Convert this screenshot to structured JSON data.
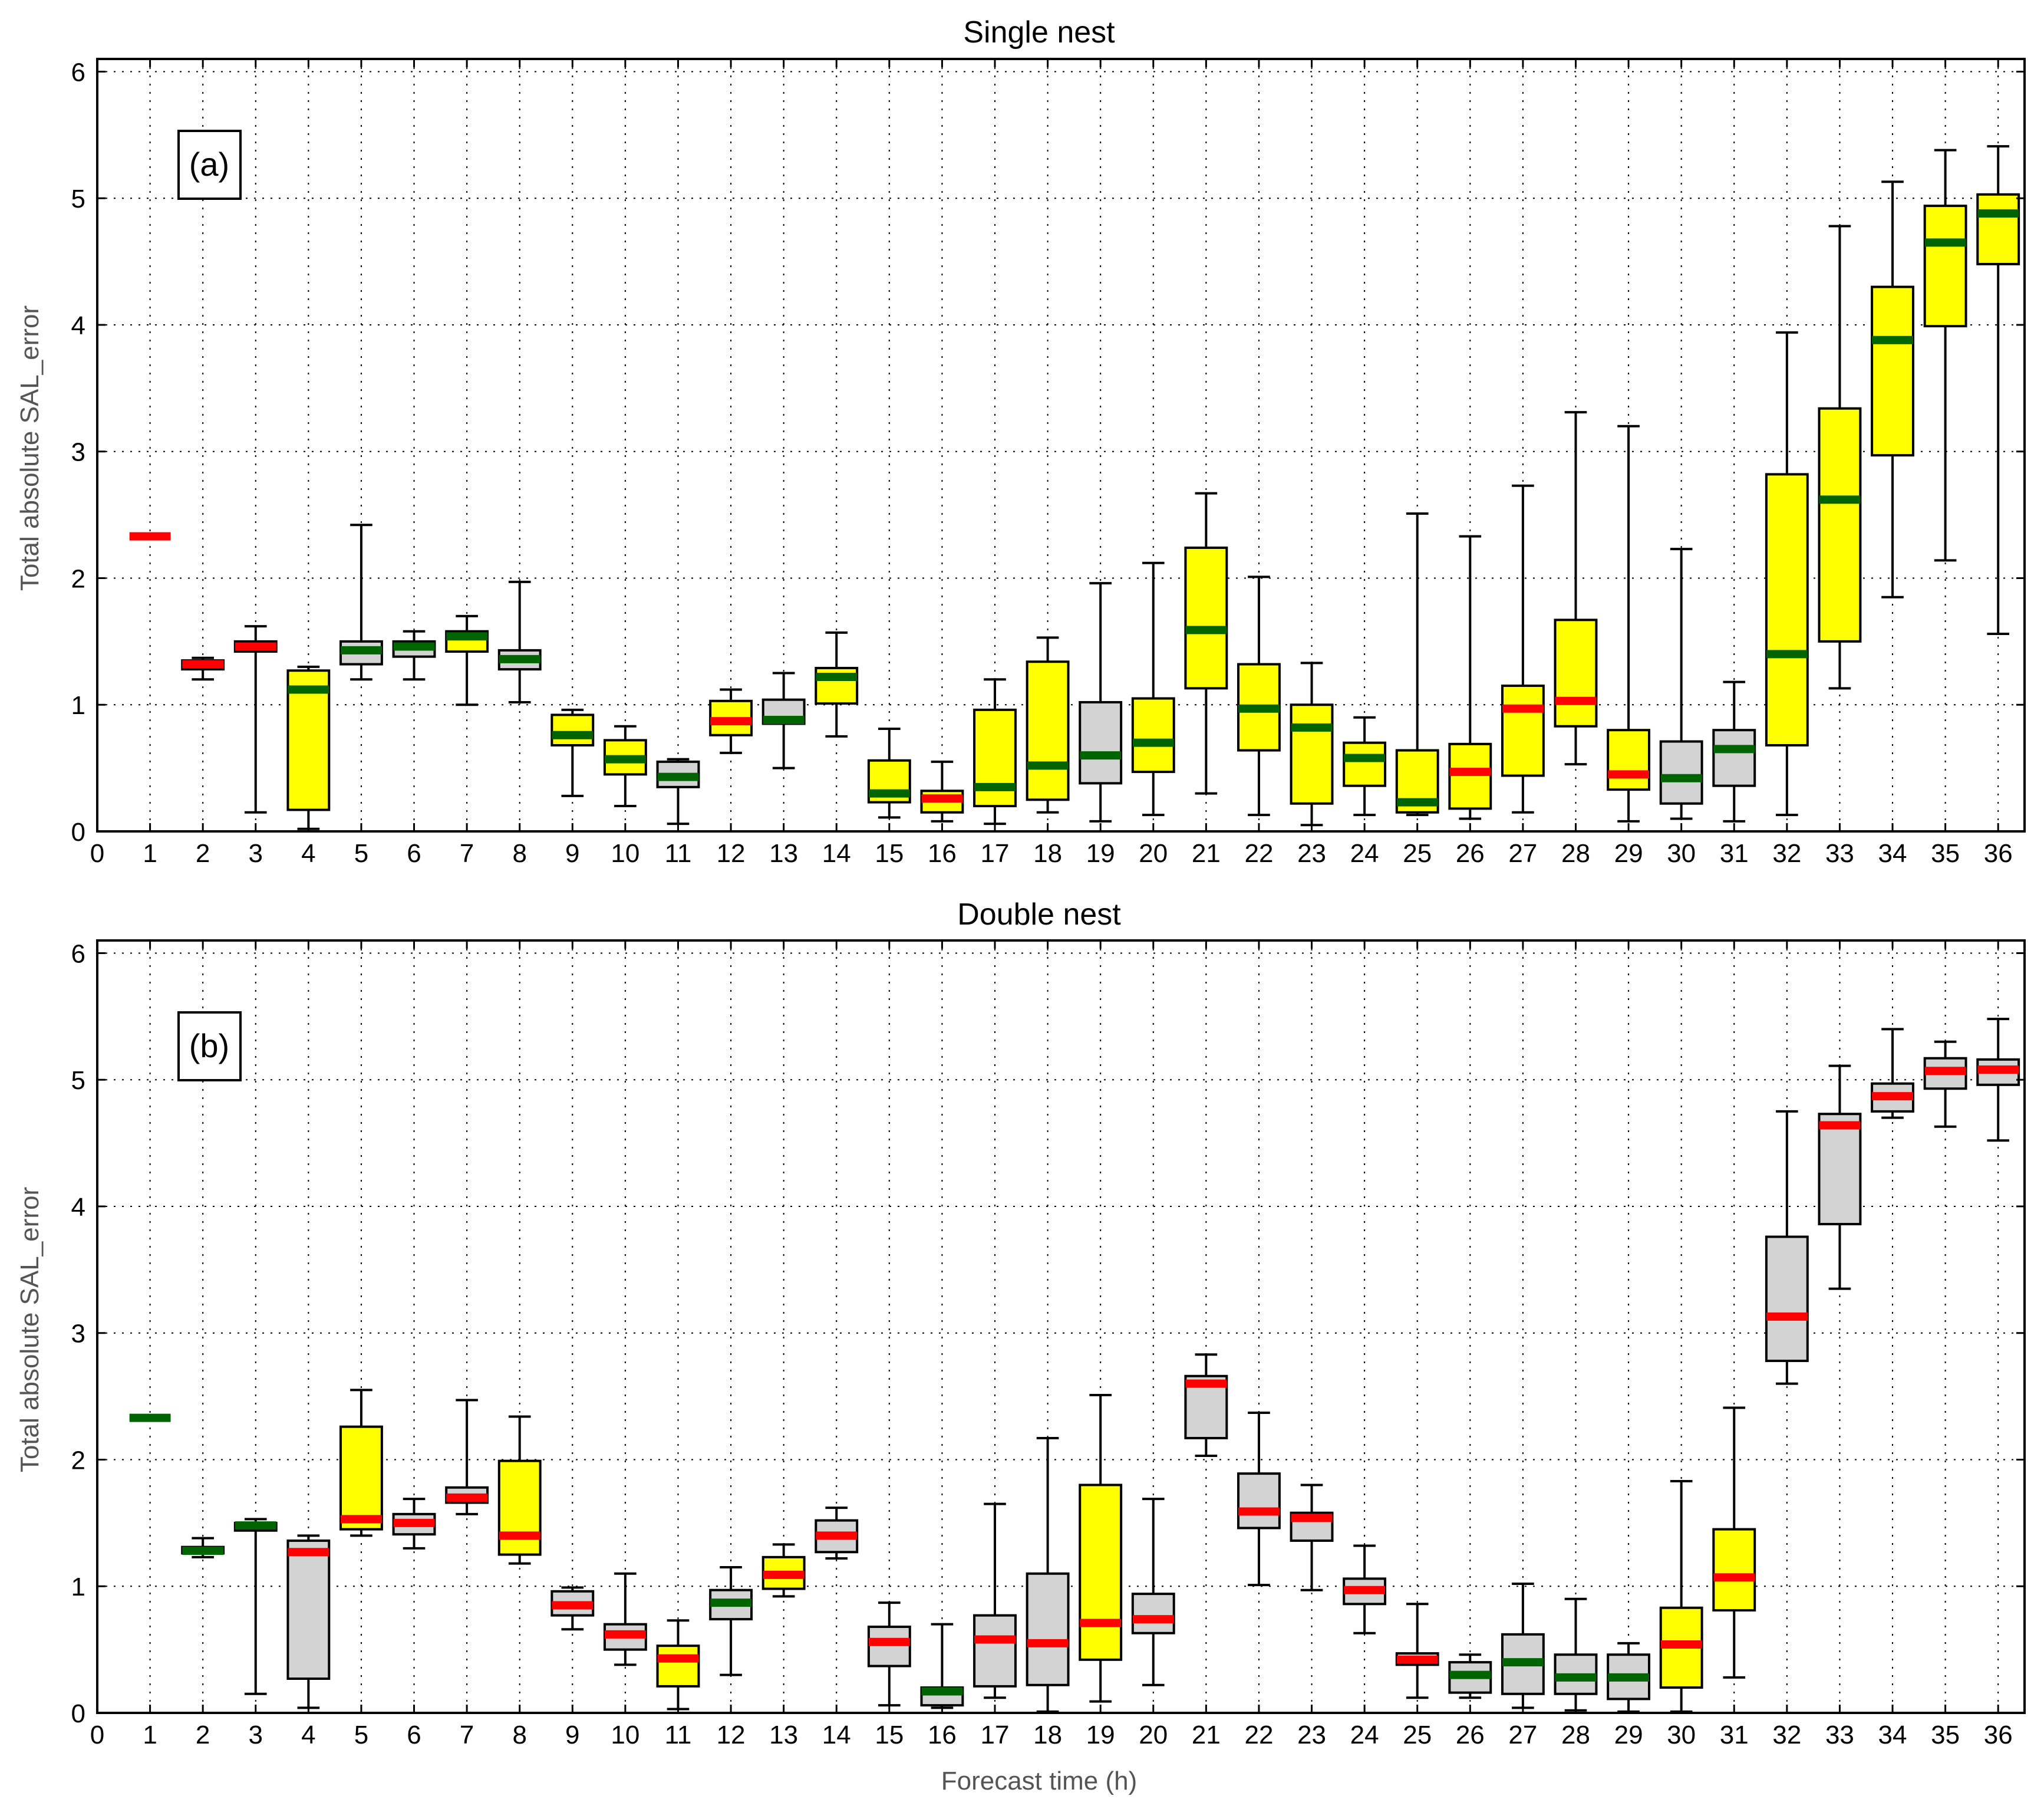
{
  "chart_data": [
    {
      "type": "boxplot",
      "title": "Single nest",
      "panel_label": "(a)",
      "ylabel": "Total absolute SAL_error",
      "xlabel": "",
      "xlim": [
        0,
        36.5
      ],
      "ylim": [
        0,
        6.1
      ],
      "xticks": [
        "0",
        "1",
        "2",
        "3",
        "4",
        "5",
        "6",
        "7",
        "8",
        "9",
        "10",
        "11",
        "12",
        "13",
        "14",
        "15",
        "16",
        "17",
        "18",
        "19",
        "20",
        "21",
        "22",
        "23",
        "24",
        "25",
        "26",
        "27",
        "28",
        "29",
        "30",
        "31",
        "32",
        "33",
        "34",
        "35",
        "36"
      ],
      "yticks": [
        "0",
        "1",
        "2",
        "3",
        "4",
        "5",
        "6"
      ],
      "grid": true,
      "colors": {
        "yellow": "#ffff00",
        "gray": "#d3d3d3",
        "red": "#ff0000",
        "green": "#006400"
      },
      "boxes": [
        {
          "x": 1,
          "min": 2.33,
          "q1": 2.33,
          "median": 2.33,
          "q3": 2.33,
          "max": 2.33,
          "box": "none",
          "median_color": "red"
        },
        {
          "x": 2,
          "min": 1.2,
          "q1": 1.28,
          "median": 1.32,
          "q3": 1.35,
          "max": 1.37,
          "box": "gray",
          "median_color": "red"
        },
        {
          "x": 3,
          "min": 0.15,
          "q1": 1.42,
          "median": 1.46,
          "q3": 1.5,
          "max": 1.62,
          "box": "gray",
          "median_color": "red"
        },
        {
          "x": 4,
          "min": 0.02,
          "q1": 0.17,
          "median": 1.12,
          "q3": 1.27,
          "max": 1.3,
          "box": "yellow",
          "median_color": "green"
        },
        {
          "x": 5,
          "min": 1.2,
          "q1": 1.32,
          "median": 1.43,
          "q3": 1.5,
          "max": 2.42,
          "box": "gray",
          "median_color": "green"
        },
        {
          "x": 6,
          "min": 1.2,
          "q1": 1.38,
          "median": 1.46,
          "q3": 1.5,
          "max": 1.58,
          "box": "gray",
          "median_color": "green"
        },
        {
          "x": 7,
          "min": 1.0,
          "q1": 1.42,
          "median": 1.54,
          "q3": 1.58,
          "max": 1.7,
          "box": "yellow",
          "median_color": "green"
        },
        {
          "x": 8,
          "min": 1.02,
          "q1": 1.28,
          "median": 1.36,
          "q3": 1.43,
          "max": 1.97,
          "box": "gray",
          "median_color": "green"
        },
        {
          "x": 9,
          "min": 0.28,
          "q1": 0.68,
          "median": 0.76,
          "q3": 0.92,
          "max": 0.96,
          "box": "yellow",
          "median_color": "green"
        },
        {
          "x": 10,
          "min": 0.2,
          "q1": 0.45,
          "median": 0.57,
          "q3": 0.72,
          "max": 0.83,
          "box": "yellow",
          "median_color": "green"
        },
        {
          "x": 11,
          "min": 0.06,
          "q1": 0.35,
          "median": 0.43,
          "q3": 0.55,
          "max": 0.57,
          "box": "gray",
          "median_color": "green"
        },
        {
          "x": 12,
          "min": 0.62,
          "q1": 0.76,
          "median": 0.87,
          "q3": 1.03,
          "max": 1.12,
          "box": "yellow",
          "median_color": "red"
        },
        {
          "x": 13,
          "min": 0.5,
          "q1": 0.85,
          "median": 0.88,
          "q3": 1.04,
          "max": 1.25,
          "box": "gray",
          "median_color": "green"
        },
        {
          "x": 14,
          "min": 0.75,
          "q1": 1.01,
          "median": 1.22,
          "q3": 1.29,
          "max": 1.57,
          "box": "yellow",
          "median_color": "green"
        },
        {
          "x": 15,
          "min": 0.11,
          "q1": 0.23,
          "median": 0.3,
          "q3": 0.56,
          "max": 0.81,
          "box": "yellow",
          "median_color": "green"
        },
        {
          "x": 16,
          "min": 0.08,
          "q1": 0.15,
          "median": 0.26,
          "q3": 0.32,
          "max": 0.55,
          "box": "yellow",
          "median_color": "red"
        },
        {
          "x": 17,
          "min": 0.06,
          "q1": 0.2,
          "median": 0.35,
          "q3": 0.96,
          "max": 1.2,
          "box": "yellow",
          "median_color": "green"
        },
        {
          "x": 18,
          "min": 0.15,
          "q1": 0.25,
          "median": 0.52,
          "q3": 1.34,
          "max": 1.53,
          "box": "yellow",
          "median_color": "green"
        },
        {
          "x": 19,
          "min": 0.08,
          "q1": 0.38,
          "median": 0.6,
          "q3": 1.02,
          "max": 1.96,
          "box": "gray",
          "median_color": "green"
        },
        {
          "x": 20,
          "min": 0.13,
          "q1": 0.47,
          "median": 0.7,
          "q3": 1.05,
          "max": 2.12,
          "box": "yellow",
          "median_color": "green"
        },
        {
          "x": 21,
          "min": 0.3,
          "q1": 1.13,
          "median": 1.59,
          "q3": 2.24,
          "max": 2.67,
          "box": "yellow",
          "median_color": "green"
        },
        {
          "x": 22,
          "min": 0.13,
          "q1": 0.64,
          "median": 0.97,
          "q3": 1.32,
          "max": 2.01,
          "box": "yellow",
          "median_color": "green"
        },
        {
          "x": 23,
          "min": 0.05,
          "q1": 0.22,
          "median": 0.82,
          "q3": 1.0,
          "max": 1.33,
          "box": "yellow",
          "median_color": "green"
        },
        {
          "x": 24,
          "min": 0.13,
          "q1": 0.36,
          "median": 0.58,
          "q3": 0.7,
          "max": 0.9,
          "box": "yellow",
          "median_color": "green"
        },
        {
          "x": 25,
          "min": 0.13,
          "q1": 0.15,
          "median": 0.23,
          "q3": 0.64,
          "max": 2.51,
          "box": "yellow",
          "median_color": "green"
        },
        {
          "x": 26,
          "min": 0.1,
          "q1": 0.18,
          "median": 0.47,
          "q3": 0.69,
          "max": 2.33,
          "box": "yellow",
          "median_color": "red"
        },
        {
          "x": 27,
          "min": 0.15,
          "q1": 0.44,
          "median": 0.97,
          "q3": 1.15,
          "max": 2.73,
          "box": "yellow",
          "median_color": "red"
        },
        {
          "x": 28,
          "min": 0.53,
          "q1": 0.83,
          "median": 1.03,
          "q3": 1.67,
          "max": 3.31,
          "box": "yellow",
          "median_color": "red"
        },
        {
          "x": 29,
          "min": 0.08,
          "q1": 0.33,
          "median": 0.45,
          "q3": 0.8,
          "max": 3.2,
          "box": "yellow",
          "median_color": "red"
        },
        {
          "x": 30,
          "min": 0.1,
          "q1": 0.22,
          "median": 0.42,
          "q3": 0.71,
          "max": 2.23,
          "box": "gray",
          "median_color": "green"
        },
        {
          "x": 31,
          "min": 0.08,
          "q1": 0.36,
          "median": 0.65,
          "q3": 0.8,
          "max": 1.18,
          "box": "gray",
          "median_color": "green"
        },
        {
          "x": 32,
          "min": 0.13,
          "q1": 0.68,
          "median": 1.4,
          "q3": 2.82,
          "max": 3.94,
          "box": "yellow",
          "median_color": "green"
        },
        {
          "x": 33,
          "min": 1.13,
          "q1": 1.5,
          "median": 2.62,
          "q3": 3.34,
          "max": 4.78,
          "box": "yellow",
          "median_color": "green"
        },
        {
          "x": 34,
          "min": 1.85,
          "q1": 2.97,
          "median": 3.88,
          "q3": 4.3,
          "max": 5.13,
          "box": "yellow",
          "median_color": "green"
        },
        {
          "x": 35,
          "min": 2.14,
          "q1": 3.99,
          "median": 4.65,
          "q3": 4.94,
          "max": 5.38,
          "box": "yellow",
          "median_color": "green"
        },
        {
          "x": 36,
          "min": 1.56,
          "q1": 4.48,
          "median": 4.88,
          "q3": 5.03,
          "max": 5.41,
          "box": "yellow",
          "median_color": "green"
        }
      ]
    },
    {
      "type": "boxplot",
      "title": "Double nest",
      "panel_label": "(b)",
      "ylabel": "Total absolute SAL_error",
      "xlabel": "Forecast time (h)",
      "xlim": [
        0,
        36.5
      ],
      "ylim": [
        0,
        6.1
      ],
      "xticks": [
        "0",
        "1",
        "2",
        "3",
        "4",
        "5",
        "6",
        "7",
        "8",
        "9",
        "10",
        "11",
        "12",
        "13",
        "14",
        "15",
        "16",
        "17",
        "18",
        "19",
        "20",
        "21",
        "22",
        "23",
        "24",
        "25",
        "26",
        "27",
        "28",
        "29",
        "30",
        "31",
        "32",
        "33",
        "34",
        "35",
        "36"
      ],
      "yticks": [
        "0",
        "1",
        "2",
        "3",
        "4",
        "5",
        "6"
      ],
      "grid": true,
      "colors": {
        "yellow": "#ffff00",
        "gray": "#d3d3d3",
        "red": "#ff0000",
        "green": "#006400"
      },
      "boxes": [
        {
          "x": 1,
          "min": 2.33,
          "q1": 2.33,
          "median": 2.33,
          "q3": 2.33,
          "max": 2.33,
          "box": "none",
          "median_color": "green"
        },
        {
          "x": 2,
          "min": 1.23,
          "q1": 1.26,
          "median": 1.28,
          "q3": 1.31,
          "max": 1.38,
          "box": "gray",
          "median_color": "green"
        },
        {
          "x": 3,
          "min": 0.15,
          "q1": 1.44,
          "median": 1.48,
          "q3": 1.5,
          "max": 1.53,
          "box": "gray",
          "median_color": "green"
        },
        {
          "x": 4,
          "min": 0.04,
          "q1": 0.27,
          "median": 1.27,
          "q3": 1.36,
          "max": 1.4,
          "box": "gray",
          "median_color": "red"
        },
        {
          "x": 5,
          "min": 1.4,
          "q1": 1.45,
          "median": 1.53,
          "q3": 2.26,
          "max": 2.55,
          "box": "yellow",
          "median_color": "red"
        },
        {
          "x": 6,
          "min": 1.3,
          "q1": 1.41,
          "median": 1.5,
          "q3": 1.57,
          "max": 1.69,
          "box": "gray",
          "median_color": "red"
        },
        {
          "x": 7,
          "min": 1.57,
          "q1": 1.66,
          "median": 1.7,
          "q3": 1.78,
          "max": 2.47,
          "box": "gray",
          "median_color": "red"
        },
        {
          "x": 8,
          "min": 1.18,
          "q1": 1.25,
          "median": 1.4,
          "q3": 1.99,
          "max": 2.34,
          "box": "yellow",
          "median_color": "red"
        },
        {
          "x": 9,
          "min": 0.66,
          "q1": 0.77,
          "median": 0.85,
          "q3": 0.96,
          "max": 0.99,
          "box": "gray",
          "median_color": "red"
        },
        {
          "x": 10,
          "min": 0.38,
          "q1": 0.5,
          "median": 0.62,
          "q3": 0.7,
          "max": 1.1,
          "box": "gray",
          "median_color": "red"
        },
        {
          "x": 11,
          "min": 0.03,
          "q1": 0.21,
          "median": 0.43,
          "q3": 0.53,
          "max": 0.73,
          "box": "yellow",
          "median_color": "red"
        },
        {
          "x": 12,
          "min": 0.3,
          "q1": 0.74,
          "median": 0.87,
          "q3": 0.97,
          "max": 1.15,
          "box": "gray",
          "median_color": "green"
        },
        {
          "x": 13,
          "min": 0.92,
          "q1": 0.98,
          "median": 1.09,
          "q3": 1.23,
          "max": 1.33,
          "box": "yellow",
          "median_color": "red"
        },
        {
          "x": 14,
          "min": 1.22,
          "q1": 1.27,
          "median": 1.4,
          "q3": 1.52,
          "max": 1.62,
          "box": "gray",
          "median_color": "red"
        },
        {
          "x": 15,
          "min": 0.06,
          "q1": 0.37,
          "median": 0.56,
          "q3": 0.68,
          "max": 0.87,
          "box": "gray",
          "median_color": "red"
        },
        {
          "x": 16,
          "min": 0.04,
          "q1": 0.06,
          "median": 0.17,
          "q3": 0.2,
          "max": 0.7,
          "box": "gray",
          "median_color": "green"
        },
        {
          "x": 17,
          "min": 0.12,
          "q1": 0.21,
          "median": 0.58,
          "q3": 0.77,
          "max": 1.65,
          "box": "gray",
          "median_color": "red"
        },
        {
          "x": 18,
          "min": 0.01,
          "q1": 0.22,
          "median": 0.55,
          "q3": 1.1,
          "max": 2.17,
          "box": "gray",
          "median_color": "red"
        },
        {
          "x": 19,
          "min": 0.09,
          "q1": 0.42,
          "median": 0.71,
          "q3": 1.8,
          "max": 2.51,
          "box": "yellow",
          "median_color": "red"
        },
        {
          "x": 20,
          "min": 0.22,
          "q1": 0.63,
          "median": 0.74,
          "q3": 0.94,
          "max": 1.69,
          "box": "gray",
          "median_color": "red"
        },
        {
          "x": 21,
          "min": 2.03,
          "q1": 2.17,
          "median": 2.6,
          "q3": 2.66,
          "max": 2.83,
          "box": "gray",
          "median_color": "red"
        },
        {
          "x": 22,
          "min": 1.01,
          "q1": 1.46,
          "median": 1.59,
          "q3": 1.89,
          "max": 2.37,
          "box": "gray",
          "median_color": "red"
        },
        {
          "x": 23,
          "min": 0.97,
          "q1": 1.36,
          "median": 1.54,
          "q3": 1.58,
          "max": 1.8,
          "box": "gray",
          "median_color": "red"
        },
        {
          "x": 24,
          "min": 0.63,
          "q1": 0.86,
          "median": 0.97,
          "q3": 1.06,
          "max": 1.32,
          "box": "gray",
          "median_color": "red"
        },
        {
          "x": 25,
          "min": 0.12,
          "q1": 0.38,
          "median": 0.42,
          "q3": 0.47,
          "max": 0.86,
          "box": "gray",
          "median_color": "red"
        },
        {
          "x": 26,
          "min": 0.12,
          "q1": 0.16,
          "median": 0.3,
          "q3": 0.4,
          "max": 0.46,
          "box": "gray",
          "median_color": "green"
        },
        {
          "x": 27,
          "min": 0.04,
          "q1": 0.15,
          "median": 0.4,
          "q3": 0.62,
          "max": 1.02,
          "box": "gray",
          "median_color": "green"
        },
        {
          "x": 28,
          "min": 0.02,
          "q1": 0.15,
          "median": 0.28,
          "q3": 0.46,
          "max": 0.9,
          "box": "gray",
          "median_color": "green"
        },
        {
          "x": 29,
          "min": 0.01,
          "q1": 0.11,
          "median": 0.28,
          "q3": 0.46,
          "max": 0.55,
          "box": "gray",
          "median_color": "green"
        },
        {
          "x": 30,
          "min": 0.01,
          "q1": 0.2,
          "median": 0.54,
          "q3": 0.83,
          "max": 1.83,
          "box": "yellow",
          "median_color": "red"
        },
        {
          "x": 31,
          "min": 0.28,
          "q1": 0.81,
          "median": 1.07,
          "q3": 1.45,
          "max": 2.41,
          "box": "yellow",
          "median_color": "red"
        },
        {
          "x": 32,
          "min": 2.6,
          "q1": 2.78,
          "median": 3.13,
          "q3": 3.76,
          "max": 4.75,
          "box": "gray",
          "median_color": "red"
        },
        {
          "x": 33,
          "min": 3.35,
          "q1": 3.86,
          "median": 4.64,
          "q3": 4.73,
          "max": 5.11,
          "box": "gray",
          "median_color": "red"
        },
        {
          "x": 34,
          "min": 4.7,
          "q1": 4.75,
          "median": 4.87,
          "q3": 4.97,
          "max": 5.4,
          "box": "gray",
          "median_color": "red"
        },
        {
          "x": 35,
          "min": 4.63,
          "q1": 4.93,
          "median": 5.07,
          "q3": 5.17,
          "max": 5.3,
          "box": "gray",
          "median_color": "red"
        },
        {
          "x": 36,
          "min": 4.52,
          "q1": 4.96,
          "median": 5.08,
          "q3": 5.16,
          "max": 5.48,
          "box": "gray",
          "median_color": "red"
        }
      ]
    }
  ]
}
